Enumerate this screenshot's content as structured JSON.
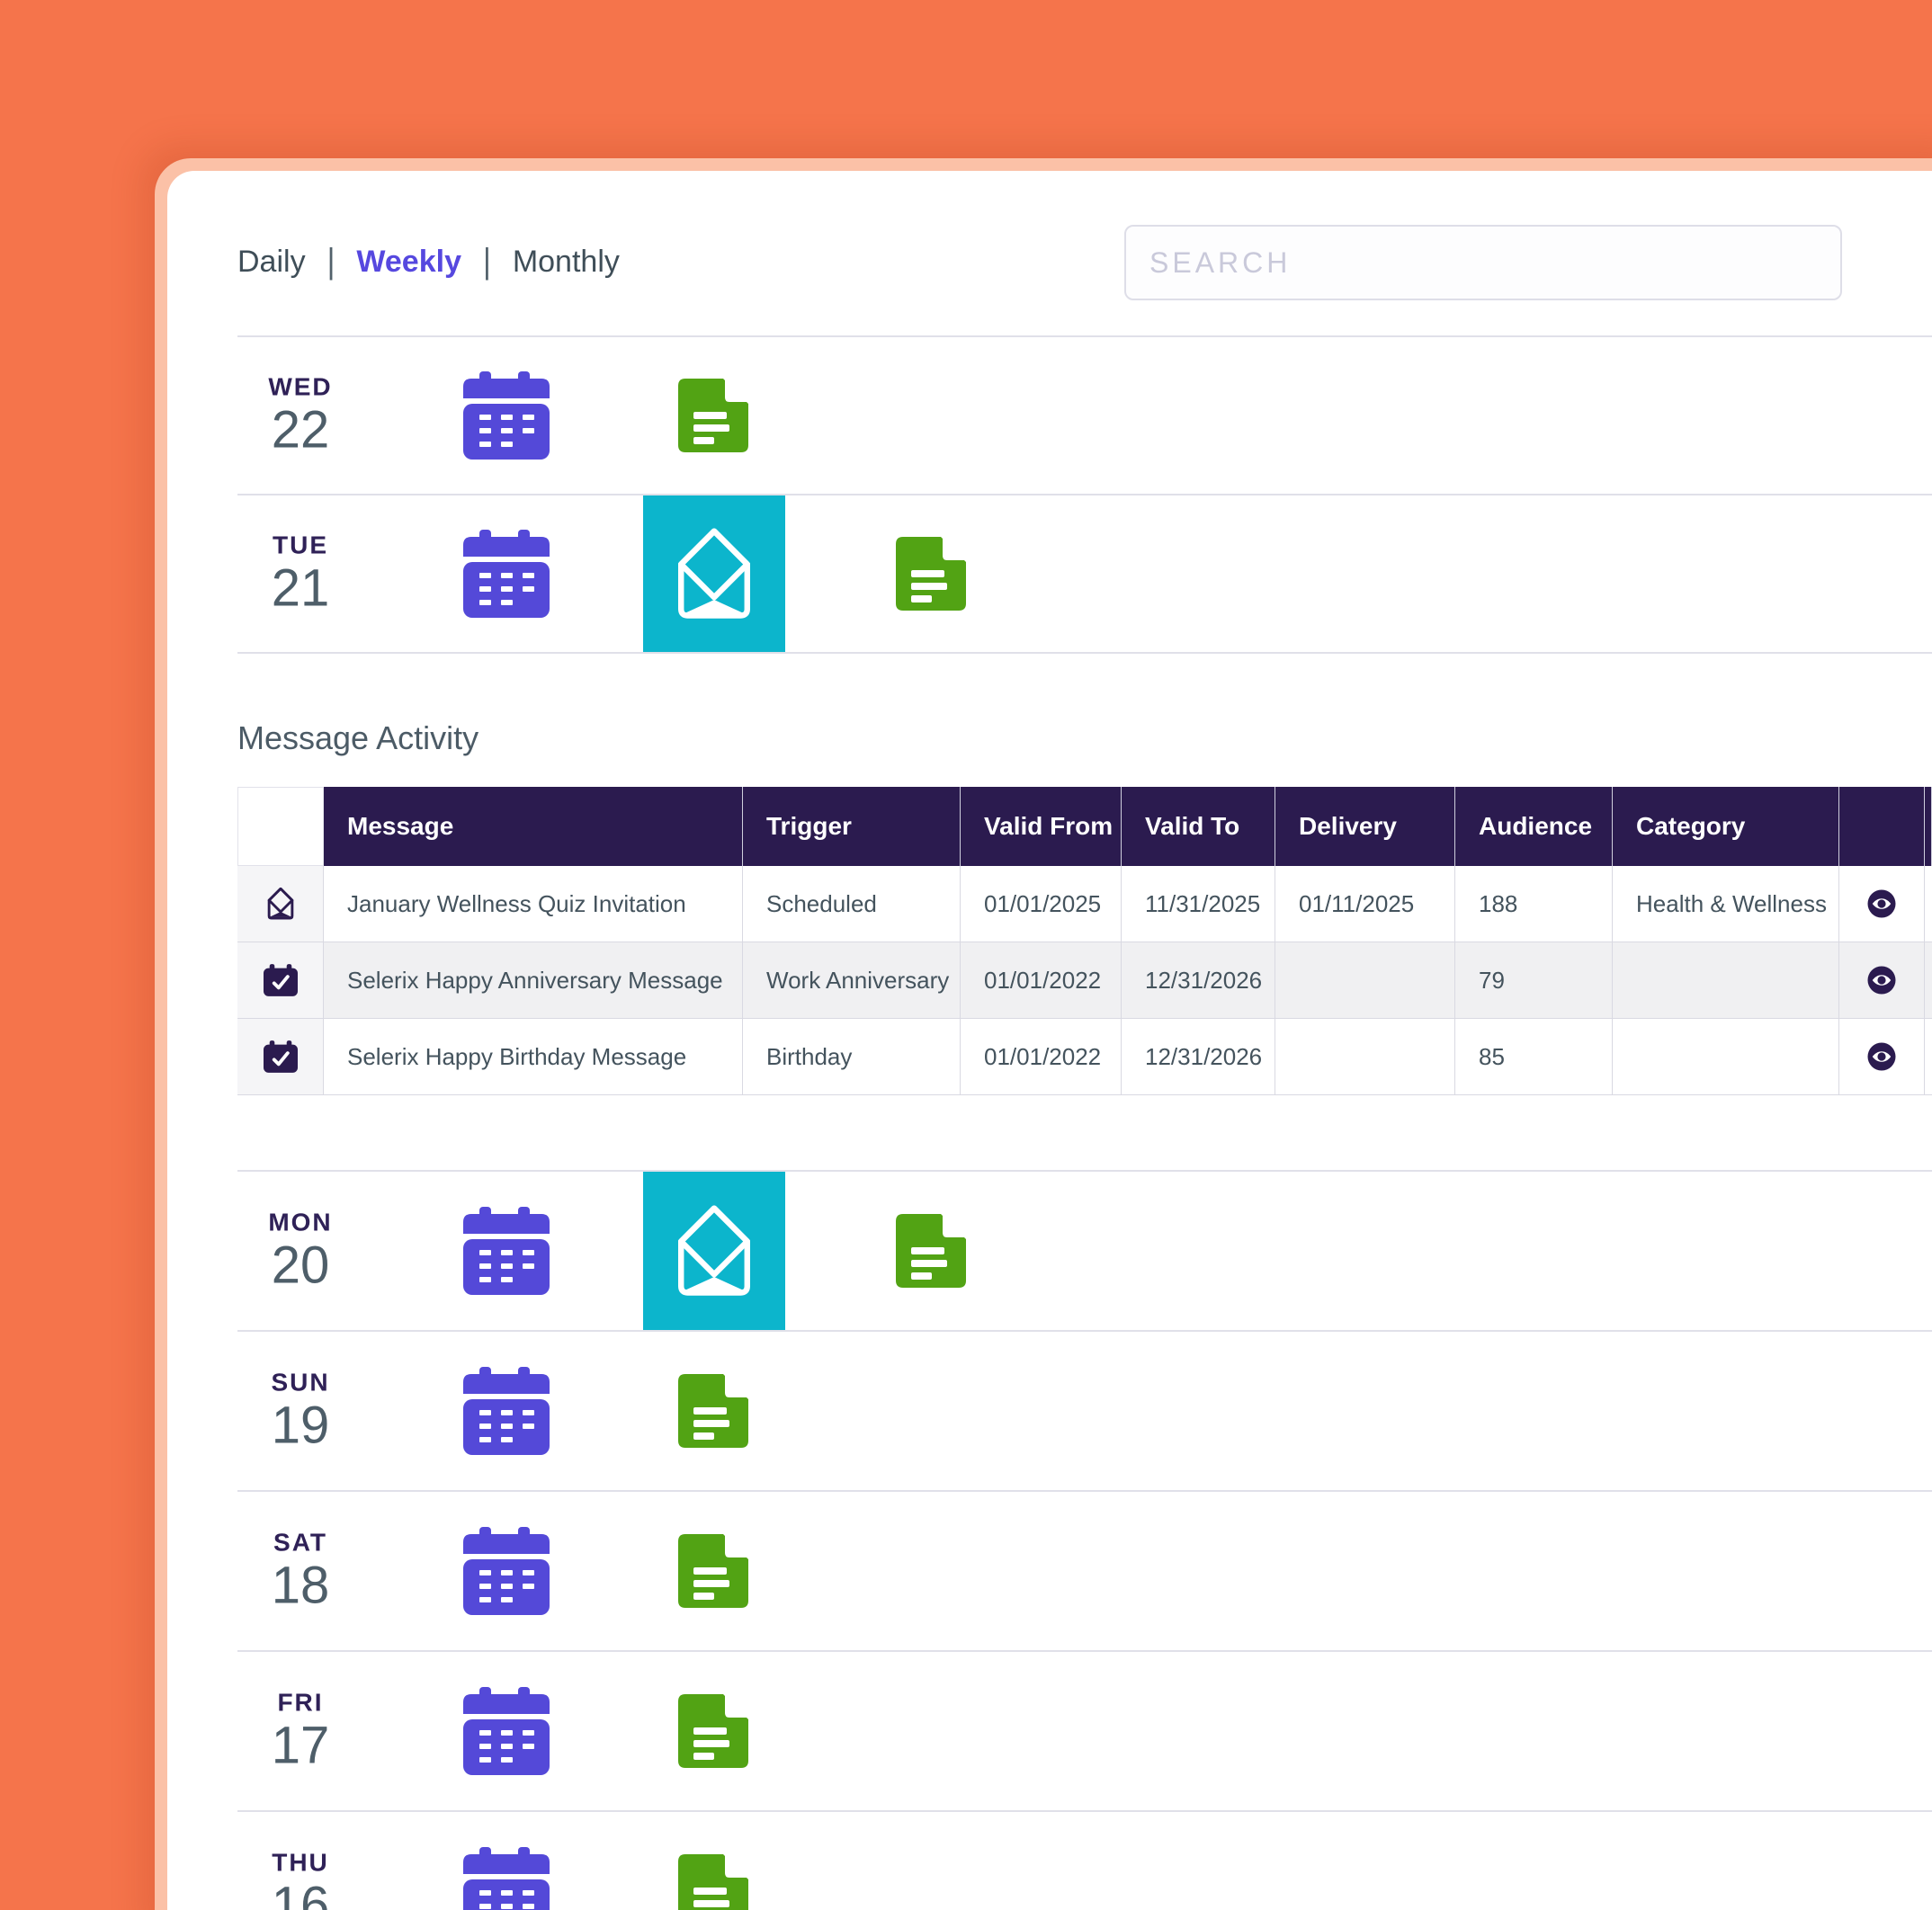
{
  "colors": {
    "orange_bg": "#F5744B",
    "frame_peach": "#FBC1A7",
    "accent_purple": "#5648DF",
    "calendar_purple": "#5449D8",
    "doc_green": "#52A314",
    "envelope_cyan": "#0CB5CC",
    "table_header_bg": "#2B1B4F",
    "icon_navy": "#2B1B4F"
  },
  "nav": {
    "items": [
      "Daily",
      "Weekly",
      "Monthly"
    ],
    "active": "Weekly",
    "separator": "|"
  },
  "search": {
    "placeholder": "SEARCH"
  },
  "section_title": "Message Activity",
  "day_rows_top": [
    {
      "abbr": "WED",
      "num": "22",
      "icons": [
        "calendar",
        "doc"
      ]
    },
    {
      "abbr": "TUE",
      "num": "21",
      "icons": [
        "calendar",
        "envelope",
        "doc"
      ]
    }
  ],
  "day_rows_bottom": [
    {
      "abbr": "MON",
      "num": "20",
      "icons": [
        "calendar",
        "envelope",
        "doc"
      ]
    },
    {
      "abbr": "SUN",
      "num": "19",
      "icons": [
        "calendar",
        "doc"
      ]
    },
    {
      "abbr": "SAT",
      "num": "18",
      "icons": [
        "calendar",
        "doc"
      ]
    },
    {
      "abbr": "FRI",
      "num": "17",
      "icons": [
        "calendar",
        "doc"
      ]
    },
    {
      "abbr": "THU",
      "num": "16",
      "icons": [
        "calendar",
        "doc"
      ]
    }
  ],
  "table": {
    "headers": [
      "",
      "Message",
      "Trigger",
      "Valid From",
      "Valid To",
      "Delivery",
      "Audience",
      "Category",
      ""
    ],
    "rows": [
      {
        "icon": "envelope-open",
        "message": "January Wellness Quiz Invitation",
        "trigger": "Scheduled",
        "valid_from": "01/01/2025",
        "valid_to": "11/31/2025",
        "delivery": "01/11/2025",
        "audience": "188",
        "category": "Health & Wellness",
        "action": "view"
      },
      {
        "icon": "calendar-check",
        "message": "Selerix Happy Anniversary Message",
        "trigger": "Work Anniversary",
        "valid_from": "01/01/2022",
        "valid_to": "12/31/2026",
        "delivery": "",
        "audience": "79",
        "category": "",
        "action": "view"
      },
      {
        "icon": "calendar-check",
        "message": "Selerix Happy Birthday Message",
        "trigger": "Birthday",
        "valid_from": "01/01/2022",
        "valid_to": "12/31/2026",
        "delivery": "",
        "audience": "85",
        "category": "",
        "action": "view"
      }
    ]
  }
}
